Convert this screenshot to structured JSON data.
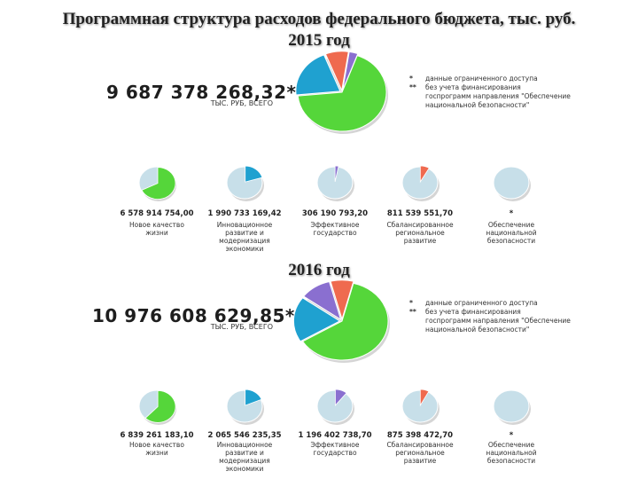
{
  "title_line1": "Программная структура расходов федерального бюджета, тыс. руб.",
  "title_line2": "2015 год",
  "year2": "2016 год",
  "colors": {
    "quality": "#55d63a",
    "innovation": "#1fa1d0",
    "effective": "#8a6fd0",
    "regional": "#ef6a4f",
    "security": "#c7dfe9",
    "other": "#c7dfe9"
  },
  "chart_data": [
    {
      "type": "pie",
      "year": "2015 год",
      "total": "9 687 378 268,32**",
      "total_unit": "ТЫС. РУБ, ВСЕГО",
      "notes": [
        {
          "mark": "*",
          "text": "данные ограниченного доступа"
        },
        {
          "mark": "**",
          "text": "без учета финансирования"
        },
        {
          "mark": "",
          "text": "госпрограмм направления \"Обеспечение"
        },
        {
          "mark": "",
          "text": "национальной безопасности\""
        }
      ],
      "slices": [
        {
          "key": "quality",
          "value": 6578914754.0
        },
        {
          "key": "innovation",
          "value": 1990733169.42
        },
        {
          "key": "regional",
          "value": 811539551.7
        },
        {
          "key": "effective",
          "value": 306190793.2
        }
      ],
      "programs": [
        {
          "key": "quality",
          "value_label": "6 578 914 754,00",
          "value": 6578914754.0,
          "label": [
            "Новое качество",
            "жизни"
          ]
        },
        {
          "key": "innovation",
          "value_label": "1 990 733 169,42",
          "value": 1990733169.42,
          "label": [
            "Инновационное",
            "развитие и",
            "модернизация",
            "экономики"
          ]
        },
        {
          "key": "effective",
          "value_label": "306 190 793,20",
          "value": 306190793.2,
          "label": [
            "Эффективное",
            "государство"
          ]
        },
        {
          "key": "regional",
          "value_label": "811 539 551,70",
          "value": 811539551.7,
          "label": [
            "Сбалансированное",
            "региональное",
            "развитие"
          ]
        },
        {
          "key": "security",
          "value_label": "*",
          "value": 0,
          "label": [
            "Обеспечение",
            "национальной",
            "безопасности"
          ]
        }
      ]
    },
    {
      "type": "pie",
      "year": "2016 год",
      "total": "10 976 608 629,85**",
      "total_unit": "ТЫС. РУБ, ВСЕГО",
      "notes": [
        {
          "mark": "*",
          "text": "данные ограниченного доступа"
        },
        {
          "mark": "**",
          "text": "без учета финансирования"
        },
        {
          "mark": "",
          "text": "госпрограмм направления \"Обеспечение"
        },
        {
          "mark": "",
          "text": "национальной безопасности\""
        }
      ],
      "slices": [
        {
          "key": "quality",
          "value": 6839261183.1
        },
        {
          "key": "innovation",
          "value": 2065546235.35
        },
        {
          "key": "effective",
          "value": 1196402738.7
        },
        {
          "key": "regional",
          "value": 875398472.7
        }
      ],
      "programs": [
        {
          "key": "quality",
          "value_label": "6 839 261 183,10",
          "value": 6839261183.1,
          "label": [
            "Новое качество",
            "жизни"
          ]
        },
        {
          "key": "innovation",
          "value_label": "2 065 546 235,35",
          "value": 2065546235.35,
          "label": [
            "Инновационное",
            "развитие и",
            "модернизация",
            "экономики"
          ]
        },
        {
          "key": "effective",
          "value_label": "1 196 402 738,70",
          "value": 1196402738.7,
          "label": [
            "Эффективное",
            "государство"
          ]
        },
        {
          "key": "regional",
          "value_label": "875 398 472,70",
          "value": 875398472.7,
          "label": [
            "Сбалансированное",
            "региональное",
            "развитие"
          ]
        },
        {
          "key": "security",
          "value_label": "*",
          "value": 0,
          "label": [
            "Обеспечение",
            "национальной",
            "безопасности"
          ]
        }
      ]
    }
  ]
}
